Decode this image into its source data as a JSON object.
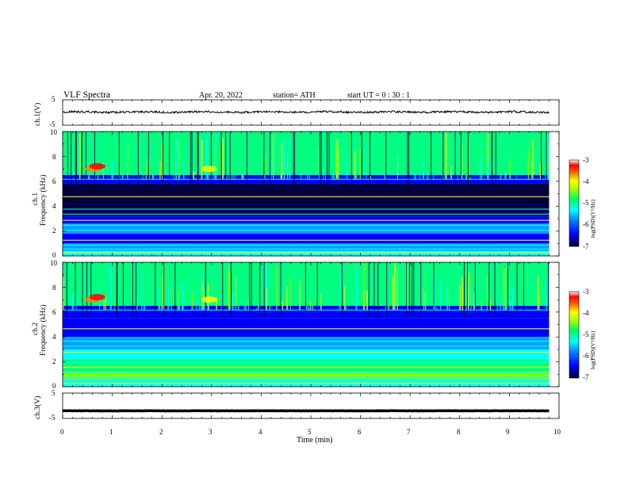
{
  "header": {
    "title": "VLF  Spectra",
    "date": "Apr. 20, 2022",
    "station": "station= ATH",
    "start": "start  UT  =   0 : 30 : 1"
  },
  "chart_data": [
    {
      "type": "line",
      "ylabel": "ch.1(V)",
      "ylim": [
        -5,
        5
      ],
      "yticks": [
        "5",
        "-5"
      ],
      "x_range_min": [
        0,
        9.8
      ],
      "baseline_v": 0.2,
      "noise_amp_v": 0.4
    },
    {
      "type": "heatmap",
      "ylabel_channel": "ch.1",
      "ylabel": "Frequency  (kHz)",
      "ylim": [
        0,
        10
      ],
      "yticks": [
        "0",
        "2",
        "4",
        "6",
        "8",
        "10"
      ],
      "colorbar": {
        "label": "log(PSD)(V²/Hz)",
        "range": [
          -7,
          -3
        ],
        "ticks": [
          "-3",
          "-4",
          "-5",
          "-6",
          "-7"
        ]
      }
    },
    {
      "type": "heatmap",
      "ylabel_channel": "ch.2",
      "ylabel": "Frequency  (kHz)",
      "ylim": [
        0,
        10
      ],
      "yticks": [
        "0",
        "2",
        "4",
        "6",
        "8",
        "10"
      ],
      "colorbar": {
        "label": "log(PSD)(V²/Hz)",
        "range": [
          -7,
          -3
        ],
        "ticks": [
          "-3",
          "-4",
          "-5",
          "-6",
          "-7"
        ]
      }
    },
    {
      "type": "line",
      "ylabel": "ch.3(V)",
      "ylim": [
        -5,
        5
      ],
      "yticks": [
        "5",
        "-5"
      ],
      "x_range_min": [
        0,
        9.8
      ],
      "baseline_v": -2.0,
      "noise_amp_v": 0.05
    }
  ],
  "x_axis": {
    "label": "Time  (min)",
    "xlim": [
      0,
      10
    ],
    "ticks": [
      "0",
      "1",
      "2",
      "3",
      "4",
      "5",
      "6",
      "7",
      "8",
      "9",
      "10"
    ]
  },
  "colors": {
    "line": "#000000",
    "colormap": [
      "#000040",
      "#0000ff",
      "#00a0ff",
      "#00ffff",
      "#00ff80",
      "#80ff00",
      "#ffff00",
      "#ff8000",
      "#ff0000",
      "#ffffff"
    ]
  }
}
